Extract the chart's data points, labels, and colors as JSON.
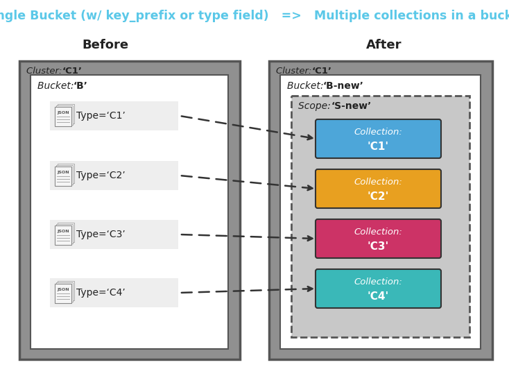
{
  "title": "Single Bucket (w/ key_prefix or type field)   =>   Multiple collections in a bucket",
  "title_color": "#5bc8e8",
  "title_fontsize": 12.5,
  "before_label": "Before",
  "after_label": "After",
  "left_cluster_label_italic": "Cluster: ",
  "left_cluster_label_bold": "‘C1’",
  "right_cluster_label_italic": "Cluster: ",
  "right_cluster_label_bold": "‘C1’",
  "left_bucket_italic": "Bucket: ",
  "left_bucket_bold": "‘B’",
  "right_bucket_italic": "Bucket: ",
  "right_bucket_bold": "‘B-new’",
  "scope_italic": "Scope: ",
  "scope_bold": "‘S-new’",
  "types": [
    "C1",
    "C2",
    "C3",
    "C4"
  ],
  "collection_colors": [
    "#4da6d9",
    "#e8a020",
    "#cc3366",
    "#3ab8b8"
  ],
  "bg_color": "#ffffff",
  "cluster_fill": "#909090",
  "cluster_edge": "#555555",
  "bucket_fill": "#ffffff",
  "bucket_edge": "#555555",
  "scope_fill": "#c8c8c8",
  "scope_edge": "#555555",
  "type_box_fill": "#eeeeee",
  "arrow_color": "#333333"
}
